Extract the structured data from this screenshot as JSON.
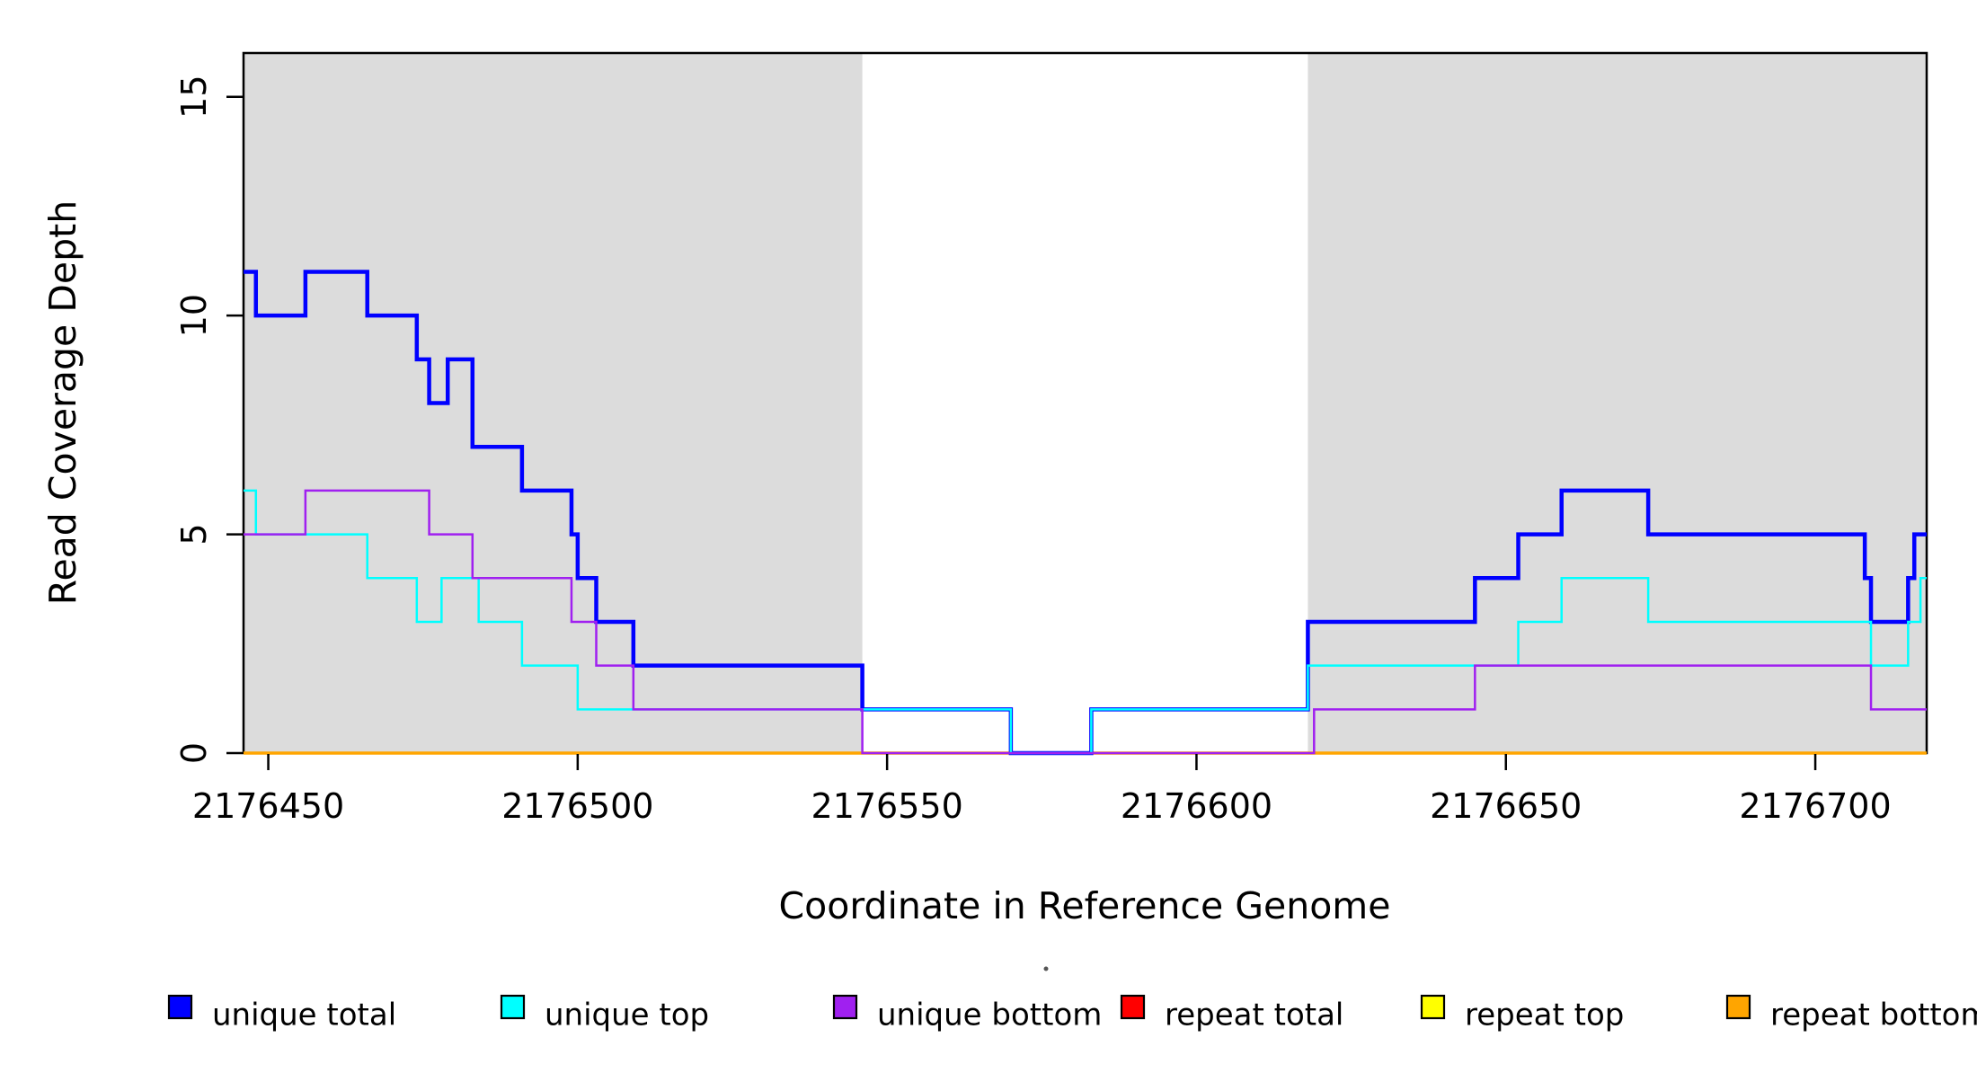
{
  "chart_data": {
    "type": "line",
    "step": true,
    "title": "",
    "xlabel": "Coordinate in Reference Genome",
    "ylabel": "Read Coverage Depth",
    "xlim": [
      2176446,
      2176718
    ],
    "ylim": [
      0,
      16
    ],
    "x_ticks": [
      2176450,
      2176500,
      2176550,
      2176600,
      2176650,
      2176700
    ],
    "y_ticks": [
      0,
      5,
      10,
      15
    ],
    "grid": false,
    "legend_position": "bottom",
    "shade_color": "#DCDCDC",
    "shaded_regions": [
      [
        2176446,
        2176546
      ],
      [
        2176618,
        2176718
      ]
    ],
    "series": [
      {
        "name": "repeat top",
        "color": "#FFFF00",
        "width": 2,
        "segments": [
          [
            2176446,
            2176718,
            0
          ]
        ]
      },
      {
        "name": "repeat total",
        "color": "#FF0000",
        "width": 2,
        "segments": [
          [
            2176446,
            2176718,
            0
          ]
        ]
      },
      {
        "name": "repeat bottom",
        "color": "#FFA500",
        "width": 3.5,
        "segments": [
          [
            2176446,
            2176718,
            0
          ]
        ]
      },
      {
        "name": "unique total",
        "color": "#0000FF",
        "width": 4.5,
        "segments": [
          [
            2176446,
            2176448,
            11
          ],
          [
            2176448,
            2176456,
            10
          ],
          [
            2176456,
            2176466,
            11
          ],
          [
            2176466,
            2176474,
            10
          ],
          [
            2176474,
            2176476,
            9
          ],
          [
            2176476,
            2176479,
            8
          ],
          [
            2176479,
            2176483,
            9
          ],
          [
            2176483,
            2176491,
            7
          ],
          [
            2176491,
            2176499,
            6
          ],
          [
            2176499,
            2176500,
            5
          ],
          [
            2176500,
            2176503,
            4
          ],
          [
            2176503,
            2176509,
            3
          ],
          [
            2176509,
            2176546,
            2
          ],
          [
            2176546,
            2176570,
            1
          ],
          [
            2176570,
            2176583,
            0
          ],
          [
            2176583,
            2176618,
            1
          ],
          [
            2176618,
            2176645,
            3
          ],
          [
            2176645,
            2176652,
            4
          ],
          [
            2176652,
            2176659,
            5
          ],
          [
            2176659,
            2176673,
            6
          ],
          [
            2176673,
            2176708,
            5
          ],
          [
            2176708,
            2176709,
            4
          ],
          [
            2176709,
            2176715,
            3
          ],
          [
            2176715,
            2176716,
            4
          ],
          [
            2176716,
            2176718,
            5
          ]
        ]
      },
      {
        "name": "unique top",
        "color": "#00FFFF",
        "width": 2.5,
        "segments": [
          [
            2176446,
            2176448,
            6
          ],
          [
            2176448,
            2176466,
            5
          ],
          [
            2176466,
            2176474,
            4
          ],
          [
            2176474,
            2176478,
            3
          ],
          [
            2176478,
            2176484,
            4
          ],
          [
            2176484,
            2176491,
            3
          ],
          [
            2176491,
            2176500,
            2
          ],
          [
            2176500,
            2176570,
            1
          ],
          [
            2176570,
            2176583,
            0
          ],
          [
            2176583,
            2176618,
            1
          ],
          [
            2176618,
            2176652,
            2
          ],
          [
            2176652,
            2176659,
            3
          ],
          [
            2176659,
            2176673,
            4
          ],
          [
            2176673,
            2176709,
            3
          ],
          [
            2176709,
            2176715,
            2
          ],
          [
            2176715,
            2176717,
            3
          ],
          [
            2176717,
            2176718,
            4
          ]
        ]
      },
      {
        "name": "unique bottom",
        "color": "#A020F0",
        "width": 2.5,
        "segments": [
          [
            2176446,
            2176456,
            5
          ],
          [
            2176456,
            2176476,
            6
          ],
          [
            2176476,
            2176483,
            5
          ],
          [
            2176483,
            2176499,
            4
          ],
          [
            2176499,
            2176503,
            3
          ],
          [
            2176503,
            2176509,
            2
          ],
          [
            2176509,
            2176546,
            1
          ],
          [
            2176546,
            2176619,
            0
          ],
          [
            2176619,
            2176645,
            1
          ],
          [
            2176645,
            2176709,
            2
          ],
          [
            2176709,
            2176718,
            1
          ]
        ]
      }
    ],
    "legend": [
      {
        "label": "unique total",
        "color": "#0000FF"
      },
      {
        "label": "unique top",
        "color": "#00FFFF"
      },
      {
        "label": "unique bottom",
        "color": "#A020F0"
      },
      {
        "label": "repeat total",
        "color": "#FF0000"
      },
      {
        "label": "repeat top",
        "color": "#FFFF00"
      },
      {
        "label": "repeat bottom",
        "color": "#FFA500"
      }
    ]
  }
}
